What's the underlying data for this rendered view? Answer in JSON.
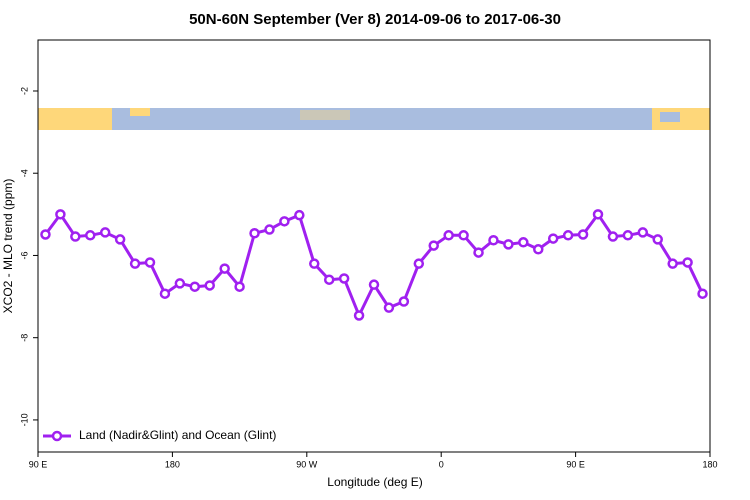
{
  "chart_data": {
    "type": "line",
    "title": "50N-60N September (Ver 8)   2014-09-06 to 2017-06-30",
    "x_label": "Longitude (deg E)",
    "y_label": "XCO2 - MLO trend (ppm)",
    "x": [
      95,
      105,
      115,
      125,
      135,
      145,
      155,
      165,
      175,
      185,
      195,
      205,
      215,
      225,
      235,
      245,
      255,
      265,
      275,
      285,
      295,
      305,
      315,
      325,
      335,
      345,
      355,
      365,
      375,
      385,
      395,
      405,
      415,
      425,
      435,
      445,
      455,
      465,
      475,
      485,
      495,
      505,
      515,
      525,
      535
    ],
    "series": [
      {
        "name": "Land (Nadir&Glint) and Ocean (Glint)",
        "color": "#a020f0",
        "values": [
          -5.49,
          -5.0,
          -5.54,
          -5.51,
          -5.44,
          -5.61,
          -6.2,
          -6.17,
          -6.93,
          -6.68,
          -6.76,
          -6.73,
          -6.32,
          -6.76,
          -5.46,
          -5.37,
          -5.17,
          -5.02,
          -6.2,
          -6.59,
          -6.56,
          -7.46,
          -6.71,
          -7.27,
          -7.12,
          -6.2,
          -5.76,
          -5.51,
          -5.51,
          -5.93,
          -5.63,
          -5.73,
          -5.68,
          -5.85,
          -5.59,
          -5.51,
          -5.49,
          -5.0,
          -5.54,
          -5.51,
          -5.44,
          -5.61,
          -6.2,
          -6.17,
          -6.93
        ]
      }
    ],
    "xlim": [
      90,
      540
    ],
    "xticks": [
      {
        "value": 90,
        "label": "90 E"
      },
      {
        "value": 180,
        "label": "180"
      },
      {
        "value": 270,
        "label": "90 W"
      },
      {
        "value": 360,
        "label": "0"
      },
      {
        "value": 450,
        "label": "90 E"
      },
      {
        "value": 540,
        "label": "180"
      }
    ],
    "ylim": [
      -10.78,
      -0.76
    ],
    "yticks": [
      -2,
      -4,
      -6,
      -8,
      -10
    ],
    "legend": "bottom-left"
  }
}
